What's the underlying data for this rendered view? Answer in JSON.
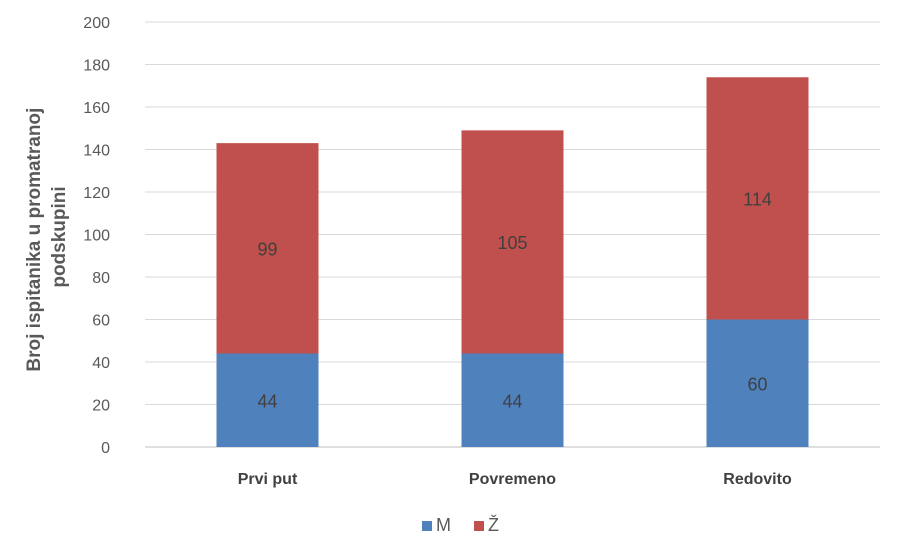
{
  "chart_data": {
    "type": "bar",
    "stacked": true,
    "categories": [
      "Prvi put",
      "Povremeno",
      "Redovito"
    ],
    "series": [
      {
        "name": "M",
        "values": [
          44,
          44,
          60
        ],
        "color": "#4f81bd"
      },
      {
        "name": "Ž",
        "values": [
          99,
          105,
          114
        ],
        "color": "#c0504d"
      }
    ],
    "ylabel_lines": [
      "Broj ispitanika u promatranoj",
      "podskupini"
    ],
    "ylim": [
      0,
      200
    ],
    "yticks": [
      0,
      20,
      40,
      60,
      80,
      100,
      120,
      140,
      160,
      180,
      200
    ],
    "grid": true,
    "legend_position": "bottom"
  }
}
